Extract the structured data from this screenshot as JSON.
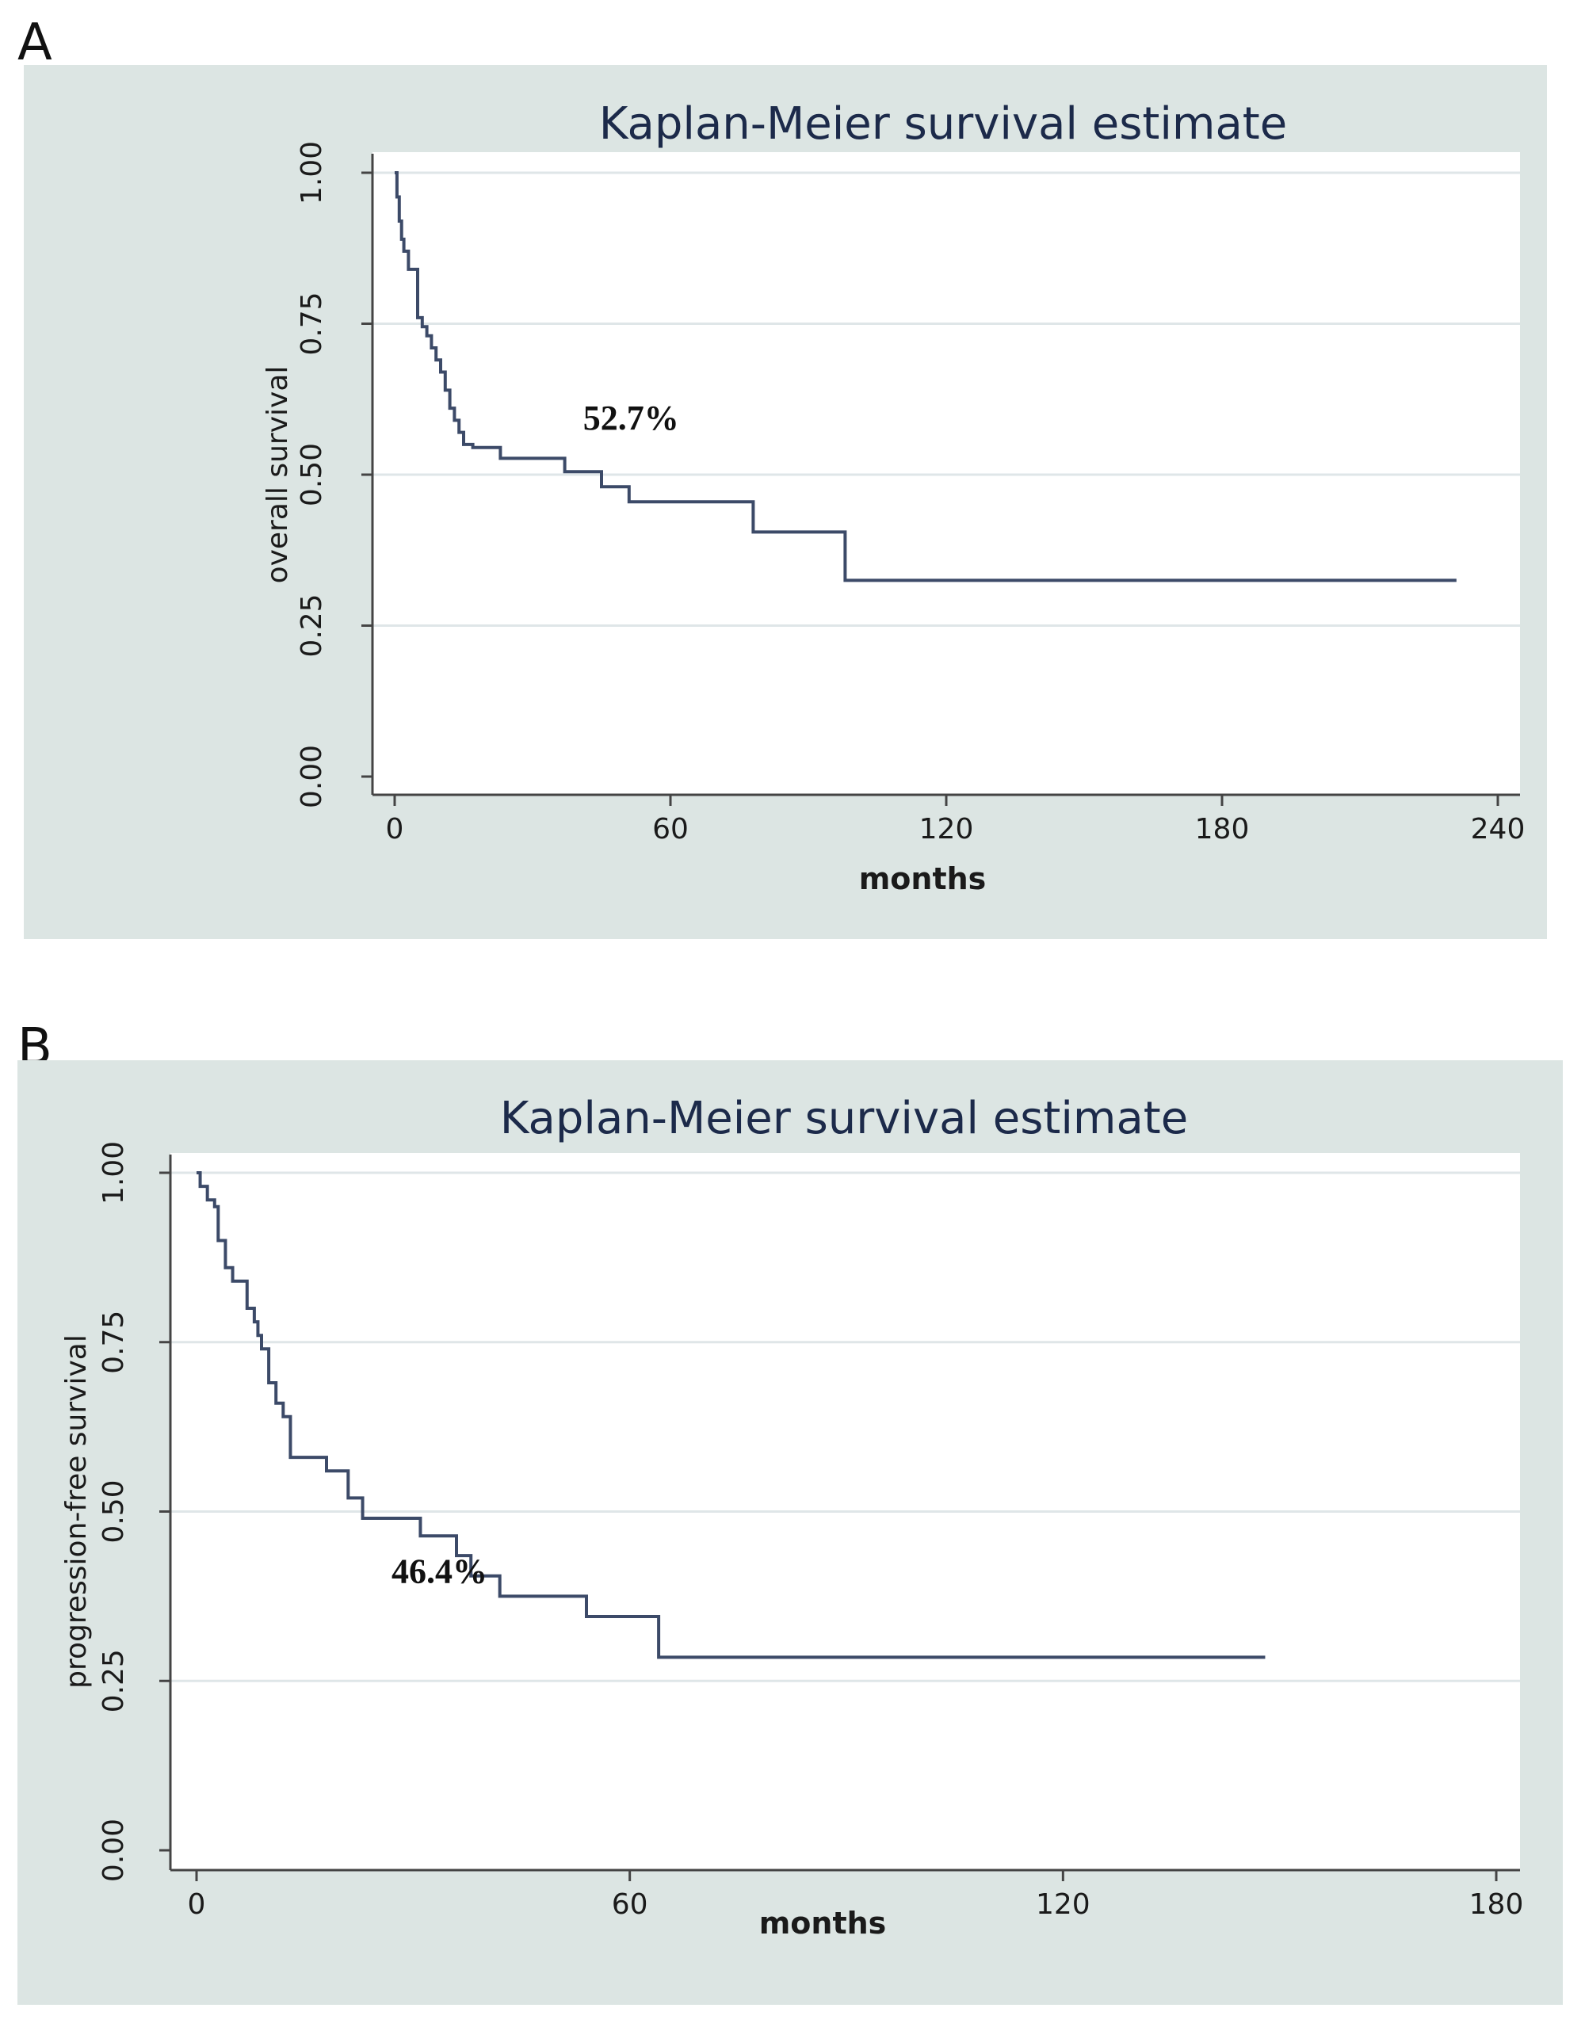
{
  "figure": {
    "panel_labels": [
      "A",
      "B"
    ],
    "colors": {
      "panel_bg": "#dce5e3",
      "plot_bg": "#ffffff",
      "grid": "#dfe6e8",
      "line": "#3c4a68",
      "axis": "#444444"
    }
  },
  "chart_data": [
    {
      "type": "line",
      "step": "post",
      "title": "Kaplan-Meier survival estimate",
      "xlabel": "months",
      "ylabel": "overall survival",
      "xlim": [
        0,
        240
      ],
      "ylim": [
        0,
        1
      ],
      "xticks": [
        "0",
        "60",
        "120",
        "180",
        "240"
      ],
      "yticks": [
        "0.00",
        "0.25",
        "0.50",
        "0.75",
        "1.00"
      ],
      "grid": true,
      "annotation": {
        "text": "52.7%",
        "x": 41,
        "y": 0.575
      },
      "series": [
        {
          "x": [
            0,
            0.5,
            1,
            1.5,
            2,
            3,
            4,
            5,
            6,
            7,
            8,
            9,
            10,
            11,
            12,
            13,
            14,
            15,
            17,
            23,
            37,
            45,
            51,
            78,
            98,
            231
          ],
          "y": [
            1.0,
            0.96,
            0.92,
            0.89,
            0.87,
            0.84,
            0.84,
            0.76,
            0.745,
            0.73,
            0.71,
            0.69,
            0.67,
            0.64,
            0.61,
            0.59,
            0.57,
            0.55,
            0.545,
            0.527,
            0.505,
            0.48,
            0.455,
            0.405,
            0.325,
            0.325
          ]
        }
      ]
    },
    {
      "type": "line",
      "step": "post",
      "title": "Kaplan-Meier survival estimate",
      "xlabel": "months",
      "ylabel": "progression-free survival",
      "xlim": [
        0,
        180
      ],
      "ylim": [
        0,
        1
      ],
      "xticks": [
        "0",
        "60",
        "120",
        "180"
      ],
      "yticks": [
        "0.00",
        "0.25",
        "0.50",
        "0.75",
        "1.00"
      ],
      "grid": true,
      "annotation": {
        "text": "46.4%",
        "x": 27,
        "y": 0.395
      },
      "series": [
        {
          "x": [
            0,
            0.5,
            1.5,
            2.5,
            3,
            4,
            5,
            6,
            7,
            8,
            8.5,
            9,
            10,
            11,
            12,
            13,
            18,
            21,
            23,
            31,
            36,
            38,
            42,
            54,
            64,
            148
          ],
          "y": [
            1.0,
            0.98,
            0.96,
            0.95,
            0.9,
            0.86,
            0.84,
            0.84,
            0.8,
            0.78,
            0.76,
            0.74,
            0.69,
            0.66,
            0.64,
            0.58,
            0.56,
            0.52,
            0.49,
            0.464,
            0.435,
            0.405,
            0.375,
            0.345,
            0.285,
            0.285
          ]
        }
      ]
    }
  ]
}
